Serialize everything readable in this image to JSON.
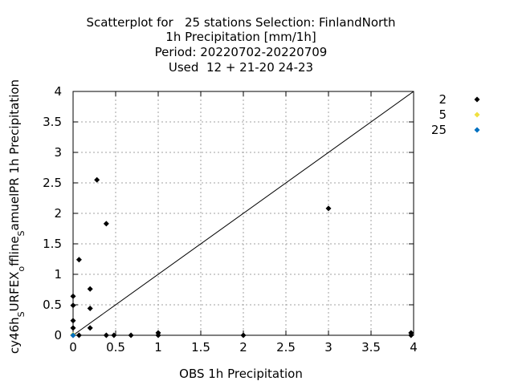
{
  "chart_data": {
    "type": "scatter",
    "title": [
      "Scatterplot for   25 stations Selection: FinlandNorth",
      "1h Precipitation [mm/1h]",
      "Period: 20220702-20220709",
      "Used  12 + 21-20 24-23"
    ],
    "xlabel": "OBS 1h Precipitation",
    "ylabel": "cy46h_sURFEX_offline_samuelPR 1h Precipitation",
    "ylabel_parts": [
      "cy46h",
      "S",
      "URFEX",
      "o",
      "ffline",
      "S",
      "amuelPR 1h Precipitation"
    ],
    "xlim": [
      0,
      4
    ],
    "ylim": [
      0,
      4
    ],
    "xticks": [
      "0",
      "0.5",
      "1",
      "1.5",
      "2",
      "2.5",
      "3",
      "3.5",
      "4"
    ],
    "yticks": [
      "0",
      "0.5",
      "1",
      "1.5",
      "2",
      "2.5",
      "3",
      "3.5",
      "4"
    ],
    "grid": true,
    "reference_line": "y=x",
    "legend_position": "right",
    "series": [
      {
        "name": "2",
        "color": "#000000",
        "marker": "diamond",
        "points": [
          [
            0.0,
            0.64
          ],
          [
            0.0,
            0.49
          ],
          [
            0.0,
            0.24
          ],
          [
            0.0,
            0.12
          ],
          [
            0.0,
            0.0
          ],
          [
            0.07,
            1.24
          ],
          [
            0.07,
            0.0
          ],
          [
            0.2,
            0.76
          ],
          [
            0.2,
            0.44
          ],
          [
            0.2,
            0.12
          ],
          [
            0.28,
            2.55
          ],
          [
            0.39,
            1.83
          ],
          [
            0.39,
            0.0
          ],
          [
            0.48,
            0.0
          ],
          [
            0.68,
            0.0
          ],
          [
            1.0,
            0.04
          ],
          [
            1.0,
            0.0
          ],
          [
            2.0,
            0.0
          ],
          [
            3.0,
            2.08
          ],
          [
            3.97,
            0.04
          ],
          [
            3.97,
            0.0
          ]
        ]
      },
      {
        "name": "5",
        "color": "#f0e040",
        "marker": "diamond",
        "points": [
          [
            0.0,
            0.01
          ]
        ]
      },
      {
        "name": "25",
        "color": "#0070c0",
        "marker": "diamond",
        "points": [
          [
            0.0,
            0.0
          ]
        ]
      }
    ]
  }
}
